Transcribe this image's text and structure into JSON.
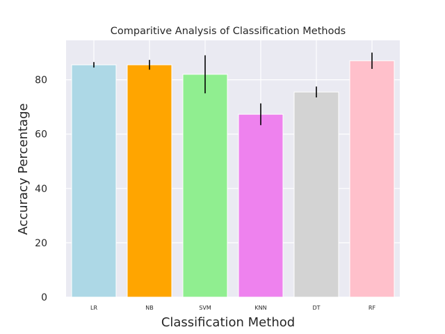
{
  "chart_data": {
    "type": "bar",
    "title": "Comparitive Analysis of Classification Methods",
    "xlabel": "Classification Method",
    "ylabel": "Accuracy Percentage",
    "categories": [
      "LR",
      "NB",
      "SVM",
      "KNN",
      "DT",
      "RF"
    ],
    "values": [
      85.5,
      85.5,
      82.0,
      67.3,
      75.5,
      87.0
    ],
    "errors": [
      1.0,
      1.8,
      7.0,
      4.0,
      2.0,
      3.0
    ],
    "bar_colors": [
      "#add8e6",
      "#ffa500",
      "#90ee90",
      "#ee82ee",
      "#d3d3d3",
      "#ffc0cb"
    ],
    "error_color": "#000000",
    "yticks": [
      0,
      20,
      40,
      60,
      80
    ],
    "ylim": [
      0,
      94.5
    ],
    "grid": true,
    "background_color": "#eaeaf2",
    "grid_color": "#ffffff"
  }
}
